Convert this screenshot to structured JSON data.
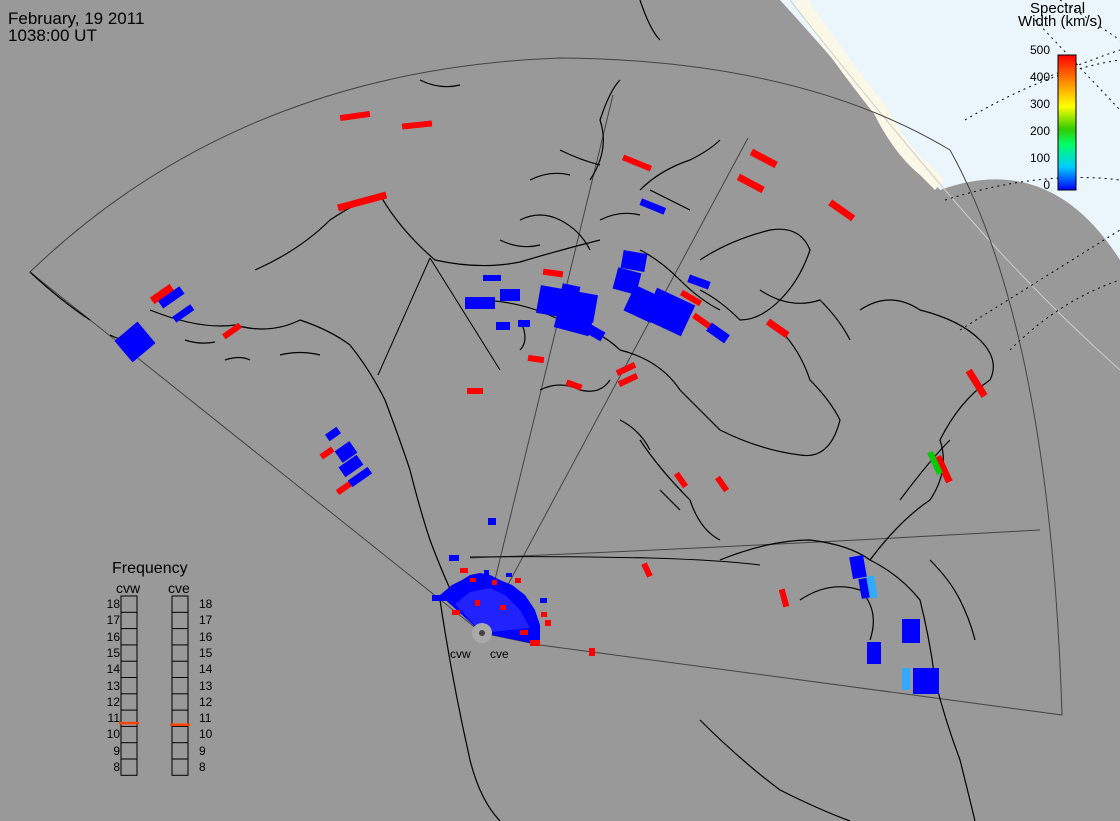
{
  "header": {
    "date": "February, 19 2011",
    "time": "1038:00 UT"
  },
  "colorbar": {
    "title_line1": "Spectral",
    "title_line2": "Width (km/s)",
    "ticks": [
      "500",
      "400",
      "300",
      "200",
      "100",
      "0"
    ],
    "range": [
      0,
      500
    ],
    "colors": [
      "#0000ff",
      "#00ccff",
      "#00ff66",
      "#33cc00",
      "#ffff00",
      "#ff9900",
      "#ff0000"
    ]
  },
  "frequency": {
    "title": "Frequency",
    "radars": [
      {
        "name": "cvw",
        "value": 10.7
      },
      {
        "name": "cve",
        "value": 10.6
      }
    ],
    "scale": [
      "18",
      "17",
      "16",
      "15",
      "14",
      "13",
      "12",
      "11",
      "10",
      "9",
      "8"
    ],
    "marker_color": "#ff4400"
  },
  "radar_sites": [
    {
      "label": "cvw"
    },
    {
      "label": "cve"
    }
  ],
  "colors": {
    "background": "#999999",
    "daylight": "#eaf6fc",
    "land_edge": "#fbf8e8",
    "high_width": "#ff0000",
    "low_width": "#0000ff",
    "mid_low_width": "#33aaff",
    "mid_width": "#00cc00"
  }
}
